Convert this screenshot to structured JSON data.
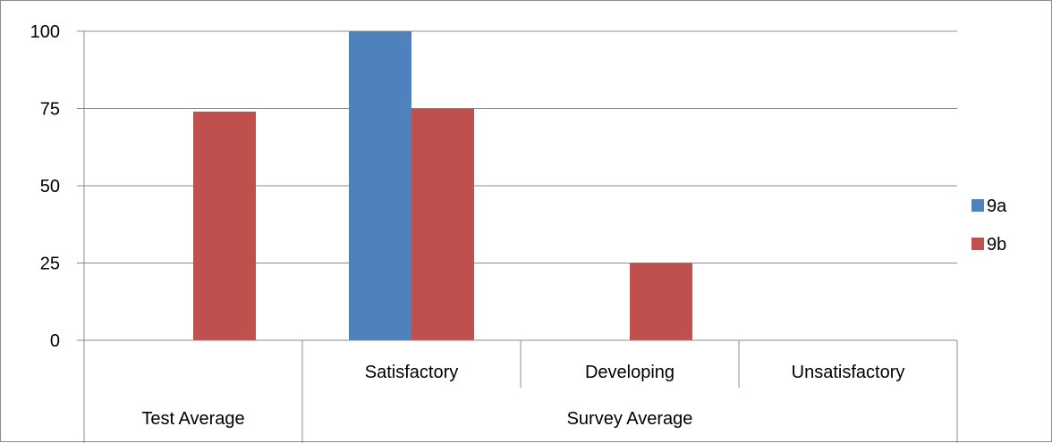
{
  "chart_data": {
    "type": "bar",
    "categories": [
      "",
      "Satisfactory",
      "Developing",
      "Unsatisfactory"
    ],
    "category_groups": [
      {
        "label": "Test Average",
        "span": 1
      },
      {
        "label": "Survey Average",
        "span": 3
      }
    ],
    "series": [
      {
        "name": "9a",
        "color": "#4f81bd",
        "values": [
          0,
          100,
          0,
          0
        ]
      },
      {
        "name": "9b",
        "color": "#c0504d",
        "values": [
          74,
          75,
          25,
          0
        ]
      }
    ],
    "yticks": [
      0,
      25,
      50,
      75,
      100
    ],
    "ylim": [
      0,
      100
    ],
    "grid": true,
    "legend_position": "right",
    "title": "",
    "xlabel": "",
    "ylabel": ""
  }
}
